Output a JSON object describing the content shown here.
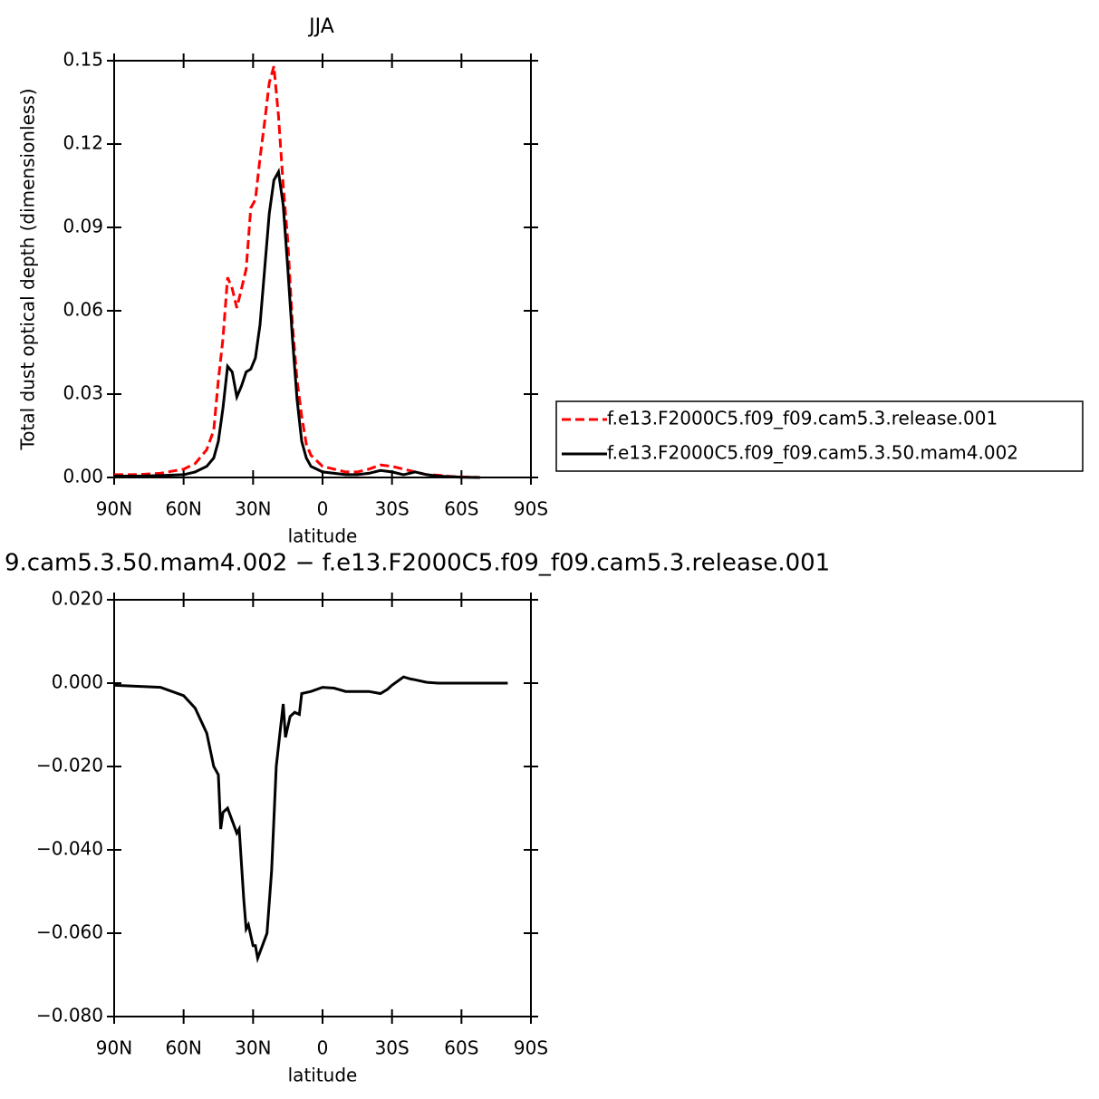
{
  "chart_data": [
    {
      "type": "line",
      "title": "JJA",
      "ylabel": "Total dust optical depth (dimensionless)",
      "xlabel": "latitude",
      "x": [
        90,
        80,
        70,
        60,
        55,
        50,
        47,
        45,
        43,
        41,
        39,
        37,
        35,
        33,
        31,
        29,
        27,
        25,
        23,
        21,
        19,
        17,
        15,
        13,
        11,
        9,
        7,
        5,
        0,
        -5,
        -10,
        -15,
        -20,
        -25,
        -30,
        -35,
        -40,
        -45,
        -50,
        -55,
        -60,
        -68
      ],
      "series": [
        {
          "name": "f.e13.F2000C5.f09_f09.cam5.3.release.001",
          "color": "#ff0000",
          "line_style": "dashed",
          "values": [
            0.001,
            0.001,
            0.0015,
            0.003,
            0.005,
            0.01,
            0.017,
            0.035,
            0.05,
            0.072,
            0.068,
            0.061,
            0.068,
            0.075,
            0.097,
            0.1,
            0.115,
            0.128,
            0.142,
            0.148,
            0.13,
            0.105,
            0.085,
            0.055,
            0.035,
            0.022,
            0.012,
            0.008,
            0.004,
            0.003,
            0.002,
            0.002,
            0.003,
            0.0045,
            0.004,
            0.003,
            0.002,
            0.001,
            0.0008,
            0.0004,
            0.0002,
            0
          ]
        },
        {
          "name": "f.e13.F2000C5.f09_f09.cam5.3.50.mam4.002",
          "color": "#000000",
          "line_style": "solid",
          "values": [
            0.0005,
            0.0005,
            0.0007,
            0.001,
            0.002,
            0.004,
            0.007,
            0.013,
            0.025,
            0.04,
            0.038,
            0.029,
            0.033,
            0.038,
            0.039,
            0.043,
            0.055,
            0.075,
            0.095,
            0.107,
            0.11,
            0.098,
            0.075,
            0.05,
            0.028,
            0.013,
            0.007,
            0.004,
            0.002,
            0.0015,
            0.001,
            0.001,
            0.0015,
            0.0025,
            0.002,
            0.001,
            0.002,
            0.001,
            0.0005,
            0.0003,
            0.0001,
            0
          ]
        }
      ],
      "xlim": [
        90,
        -90
      ],
      "xticks": [
        {
          "value": 90,
          "label": "90N"
        },
        {
          "value": 60,
          "label": "60N"
        },
        {
          "value": 30,
          "label": "30N"
        },
        0,
        {
          "value": -30,
          "label": "30S"
        },
        {
          "value": -60,
          "label": "60S"
        },
        {
          "value": -90,
          "label": "90S"
        }
      ],
      "ylim": [
        0,
        0.15
      ],
      "yticks": [
        {
          "value": 0,
          "label": "0.00"
        },
        0.03,
        0.06,
        0.09,
        0.12,
        0.15
      ],
      "legend": "right"
    },
    {
      "type": "line",
      "title": "9.cam5.3.50.mam4.002 − f.e13.F2000C5.f09_f09.cam5.3.release.001",
      "xlabel": "latitude",
      "x": [
        90,
        70,
        60,
        55,
        50,
        47,
        45,
        44,
        43,
        41,
        39,
        37,
        36,
        34,
        33,
        32,
        30,
        29,
        28,
        26,
        24,
        22,
        20,
        18,
        17,
        16,
        14,
        12,
        10,
        9,
        5,
        0,
        -5,
        -10,
        -15,
        -20,
        -25,
        -28,
        -30,
        -35,
        -38,
        -40,
        -45,
        -50,
        -60,
        -70,
        -80
      ],
      "series": [
        {
          "color": "#000000",
          "line_style": "solid",
          "values": [
            -0.0005,
            -0.001,
            -0.003,
            -0.006,
            -0.012,
            -0.02,
            -0.022,
            -0.035,
            -0.031,
            -0.03,
            -0.033,
            -0.036,
            -0.035,
            -0.052,
            -0.059,
            -0.058,
            -0.063,
            -0.063,
            -0.066,
            -0.063,
            -0.06,
            -0.045,
            -0.02,
            -0.01,
            -0.005,
            -0.013,
            -0.008,
            -0.007,
            -0.0075,
            -0.0025,
            -0.002,
            -0.001,
            -0.0012,
            -0.002,
            -0.002,
            -0.002,
            -0.0025,
            -0.0015,
            -0.0005,
            0.0015,
            0.001,
            0.0008,
            0.0002,
            0,
            0,
            0,
            0
          ]
        }
      ],
      "xlim": [
        90,
        -90
      ],
      "xticks": [
        {
          "value": 90,
          "label": "90N"
        },
        {
          "value": 60,
          "label": "60N"
        },
        {
          "value": 30,
          "label": "30N"
        },
        0,
        {
          "value": -30,
          "label": "30S"
        },
        {
          "value": -60,
          "label": "60S"
        },
        {
          "value": -90,
          "label": "90S"
        }
      ],
      "ylim": [
        -0.08,
        0.02
      ],
      "yticks": [
        {
          "value": 0.02,
          "label": "0.020"
        },
        {
          "value": 0,
          "label": "0.000"
        },
        {
          "value": -0.02,
          "label": "−0.020"
        },
        {
          "value": -0.04,
          "label": "−0.040"
        },
        {
          "value": -0.06,
          "label": "−0.060"
        },
        {
          "value": -0.08,
          "label": "−0.080"
        }
      ]
    }
  ]
}
